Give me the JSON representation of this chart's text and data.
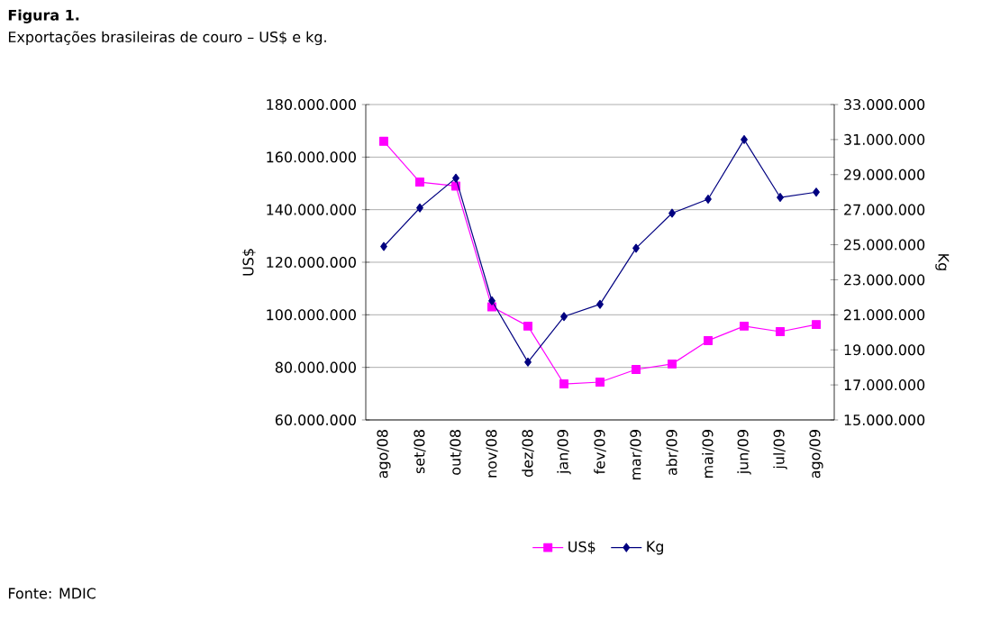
{
  "chart_data": {
    "type": "line",
    "title": "Figura 1.",
    "subtitle": "Exportações brasileiras de couro – US$ e kg.",
    "ylabel": "US$",
    "y2label": "Kg",
    "categories": [
      "ago/08",
      "set/08",
      "out/08",
      "nov/08",
      "dez/08",
      "jan/09",
      "fev/09",
      "mar/09",
      "abr/09",
      "mai/09",
      "jun/09",
      "jul/09",
      "ago/09"
    ],
    "series": [
      {
        "name": "US$",
        "color": "#ff00ff",
        "marker": "square",
        "values": [
          166000000,
          150500000,
          149000000,
          103000000,
          95700000,
          73700000,
          74400000,
          79200000,
          81300000,
          90200000,
          95700000,
          93600000,
          96300000
        ]
      },
      {
        "name": "Kg",
        "color": "#000080",
        "marker": "diamond",
        "axis": "y2",
        "values": [
          24900000,
          27100000,
          28800000,
          21800000,
          18300000,
          20900000,
          21600000,
          24800000,
          26800000,
          27600000,
          31000000,
          27700000,
          28000000
        ]
      }
    ],
    "ylim": [
      60000000,
      180000000
    ],
    "yticks": [
      {
        "value": 60000000,
        "label": "60.000.000"
      },
      {
        "value": 80000000,
        "label": "80.000.000"
      },
      {
        "value": 100000000,
        "label": "100.000.000"
      },
      {
        "value": 120000000,
        "label": "120.000.000"
      },
      {
        "value": 140000000,
        "label": "140.000.000"
      },
      {
        "value": 160000000,
        "label": "160.000.000"
      },
      {
        "value": 180000000,
        "label": "180.000.000"
      }
    ],
    "y2lim": [
      15000000,
      33000000
    ],
    "y2ticks": [
      {
        "value": 15000000,
        "label": "15.000.000"
      },
      {
        "value": 17000000,
        "label": "17.000.000"
      },
      {
        "value": 19000000,
        "label": "19.000.000"
      },
      {
        "value": 21000000,
        "label": "21.000.000"
      },
      {
        "value": 23000000,
        "label": "23.000.000"
      },
      {
        "value": 25000000,
        "label": "25.000.000"
      },
      {
        "value": 27000000,
        "label": "27.000.000"
      },
      {
        "value": 29000000,
        "label": "29.000.000"
      },
      {
        "value": 31000000,
        "label": "31.000.000"
      },
      {
        "value": 33000000,
        "label": "33.000.000"
      }
    ],
    "grid": "y",
    "legend": "bottom",
    "line_style": "solid",
    "annotations": [
      "Fonte: MDIC"
    ]
  }
}
